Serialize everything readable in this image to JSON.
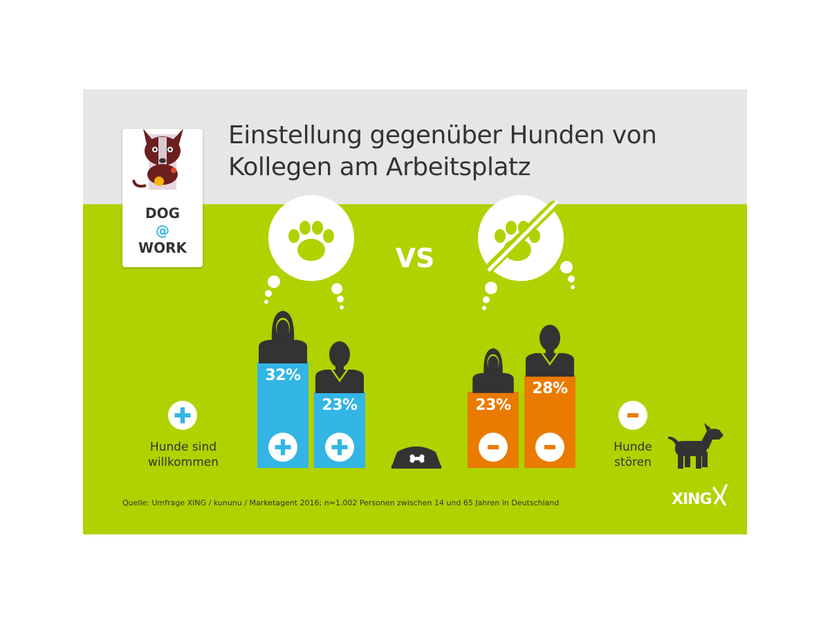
{
  "header": {
    "title_line1": "Einstellung gegenüber Hunden von",
    "title_line2": "Kollegen am Arbeitsplatz"
  },
  "badge": {
    "line1": "DOG",
    "line2": "@",
    "line3": "WORK"
  },
  "vs_label": "VS",
  "legend_positive": {
    "symbol": "plus-icon",
    "line1": "Hunde sind",
    "line2": "willkommen"
  },
  "legend_negative": {
    "symbol": "minus-icon",
    "line1": "Hunde",
    "line2": "stören"
  },
  "source": "Quelle: Umfrage XING / kununu / Marketagent 2016; n=1.002 Personen zwischen 14 und 65 Jahren in Deutschland",
  "logo": "XING",
  "colors": {
    "positive": "#33b5e5",
    "negative": "#ea7a00",
    "background": "#afd200",
    "header": "#e6e6e6",
    "figure": "#333333"
  },
  "chart_data": {
    "type": "bar",
    "title": "Einstellung gegenüber Hunden von Kollegen am Arbeitsplatz",
    "groups": [
      {
        "name": "Hunde sind willkommen",
        "icon": "paw-icon",
        "bars": [
          {
            "figure": "woman-icon",
            "value": 32,
            "label": "32%"
          },
          {
            "figure": "man-icon",
            "value": 23,
            "label": "23%"
          }
        ]
      },
      {
        "name": "Hunde stören",
        "icon": "no-paw-icon",
        "bars": [
          {
            "figure": "woman-icon",
            "value": 23,
            "label": "23%"
          },
          {
            "figure": "man-icon",
            "value": 28,
            "label": "28%"
          }
        ]
      }
    ],
    "ylim": [
      0,
      32
    ],
    "grid": false
  }
}
